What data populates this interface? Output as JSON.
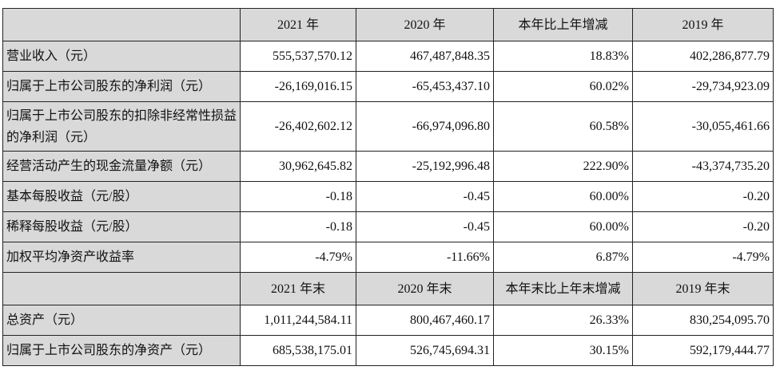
{
  "header1": [
    "",
    "2021 年",
    "2020 年",
    "本年比上年增减",
    "2019 年"
  ],
  "rows1": [
    {
      "label": "营业收入（元）",
      "values": [
        "555,537,570.12",
        "467,487,848.35",
        "18.83%",
        "402,286,877.79"
      ]
    },
    {
      "label": "归属于上市公司股东的净利润（元）",
      "values": [
        "-26,169,016.15",
        "-65,453,437.10",
        "60.02%",
        "-29,734,923.09"
      ]
    },
    {
      "label": "归属于上市公司股东的扣除非经常性损益的净利润（元）",
      "values": [
        "-26,402,602.12",
        "-66,974,096.80",
        "60.58%",
        "-30,055,461.66"
      ]
    },
    {
      "label": "经营活动产生的现金流量净额（元）",
      "values": [
        "30,962,645.82",
        "-25,192,996.48",
        "222.90%",
        "-43,374,735.20"
      ]
    },
    {
      "label": "基本每股收益（元/股）",
      "values": [
        "-0.18",
        "-0.45",
        "60.00%",
        "-0.20"
      ]
    },
    {
      "label": "稀释每股收益（元/股）",
      "values": [
        "-0.18",
        "-0.45",
        "60.00%",
        "-0.20"
      ]
    },
    {
      "label": "加权平均净资产收益率",
      "values": [
        "-4.79%",
        "-11.66%",
        "6.87%",
        "-4.79%"
      ]
    }
  ],
  "header2": [
    "",
    "2021 年末",
    "2020 年末",
    "本年末比上年末增减",
    "2019 年末"
  ],
  "rows2": [
    {
      "label": "总资产（元）",
      "values": [
        "1,011,244,584.11",
        "800,467,460.17",
        "26.33%",
        "830,254,095.70"
      ]
    },
    {
      "label": "归属于上市公司股东的净资产（元）",
      "values": [
        "685,538,175.01",
        "526,745,694.31",
        "30.15%",
        "592,179,444.77"
      ]
    }
  ]
}
